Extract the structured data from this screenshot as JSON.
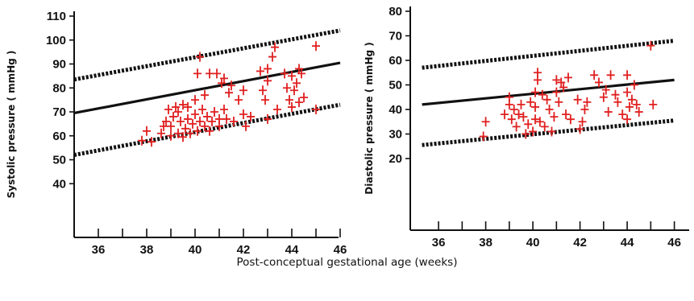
{
  "figure": {
    "shared_xlabel": "Post-conceptual gestational age (weeks)"
  },
  "colors": {
    "axis": "#111111",
    "line": "#111111",
    "points": "#e02020"
  },
  "chart_data": [
    {
      "type": "scatter",
      "ylabel": "Systolic pressure ( mmHg )",
      "xlim": [
        35,
        46
      ],
      "ylim": [
        35,
        110
      ],
      "x_ticks": [
        36,
        38,
        40,
        42,
        44,
        46
      ],
      "y_ticks": [
        40,
        50,
        60,
        70,
        80,
        90,
        100,
        110
      ],
      "x_minor_ticks": [
        37,
        39,
        41,
        43,
        45
      ],
      "grid": false,
      "lines": [
        {
          "role": "mean",
          "style": "solid",
          "points": [
            [
              35,
              69.5
            ],
            [
              46,
              90.5
            ]
          ]
        },
        {
          "role": "upper",
          "style": "dashed",
          "points": [
            [
              35,
              83.5
            ],
            [
              46,
              104
            ]
          ]
        },
        {
          "role": "lower",
          "style": "dashed",
          "points": [
            [
              35,
              52
            ],
            [
              46,
              73
            ]
          ]
        }
      ],
      "points": [
        [
          37.8,
          58
        ],
        [
          38.0,
          62
        ],
        [
          38.2,
          57.5
        ],
        [
          38.6,
          61
        ],
        [
          38.7,
          64
        ],
        [
          38.8,
          66
        ],
        [
          38.9,
          71
        ],
        [
          39.0,
          60
        ],
        [
          39.0,
          64
        ],
        [
          39.1,
          68
        ],
        [
          39.2,
          72
        ],
        [
          39.3,
          61
        ],
        [
          39.3,
          70
        ],
        [
          39.4,
          66
        ],
        [
          39.5,
          73
        ],
        [
          39.5,
          59.5
        ],
        [
          39.6,
          63
        ],
        [
          39.7,
          67
        ],
        [
          39.7,
          72
        ],
        [
          39.8,
          61
        ],
        [
          39.9,
          65
        ],
        [
          40.0,
          69
        ],
        [
          40.0,
          75
        ],
        [
          40.1,
          62
        ],
        [
          40.1,
          86
        ],
        [
          40.2,
          93
        ],
        [
          40.2,
          66
        ],
        [
          40.3,
          71
        ],
        [
          40.4,
          64
        ],
        [
          40.4,
          77
        ],
        [
          40.5,
          68
        ],
        [
          40.6,
          86
        ],
        [
          40.6,
          62
        ],
        [
          40.7,
          66
        ],
        [
          40.8,
          70
        ],
        [
          40.9,
          86
        ],
        [
          41.0,
          67
        ],
        [
          41.0,
          64
        ],
        [
          41.1,
          82
        ],
        [
          41.2,
          71
        ],
        [
          41.2,
          84
        ],
        [
          41.3,
          67
        ],
        [
          41.4,
          78
        ],
        [
          41.5,
          81
        ],
        [
          41.6,
          66
        ],
        [
          41.8,
          75
        ],
        [
          42.0,
          79
        ],
        [
          42.0,
          69
        ],
        [
          42.1,
          64
        ],
        [
          42.3,
          68
        ],
        [
          42.7,
          87
        ],
        [
          42.8,
          79
        ],
        [
          42.9,
          75
        ],
        [
          43.0,
          83
        ],
        [
          43.0,
          88
        ],
        [
          43.0,
          67
        ],
        [
          43.2,
          93
        ],
        [
          43.3,
          97
        ],
        [
          43.4,
          71
        ],
        [
          43.7,
          86
        ],
        [
          43.8,
          80
        ],
        [
          43.9,
          75
        ],
        [
          44.0,
          72
        ],
        [
          44.0,
          85
        ],
        [
          44.1,
          79
        ],
        [
          44.2,
          82
        ],
        [
          44.3,
          74
        ],
        [
          44.3,
          88
        ],
        [
          44.4,
          86
        ],
        [
          44.5,
          76
        ],
        [
          45.0,
          97.5
        ],
        [
          45.0,
          71
        ]
      ]
    },
    {
      "type": "scatter",
      "ylabel": "Diastolic pressure ( mmHg )",
      "xlim": [
        34.8,
        46
      ],
      "ylim": [
        10,
        80
      ],
      "x_ticks": [
        36,
        38,
        40,
        42,
        44,
        46
      ],
      "y_ticks": [
        20,
        30,
        40,
        50,
        60,
        70,
        80
      ],
      "x_minor_ticks": [
        37,
        39,
        41,
        43,
        45
      ],
      "grid": false,
      "lines": [
        {
          "role": "mean",
          "style": "solid",
          "points": [
            [
              35.3,
              42
            ],
            [
              46,
              52
            ]
          ]
        },
        {
          "role": "upper",
          "style": "dashed",
          "points": [
            [
              35.3,
              57
            ],
            [
              46,
              68
            ]
          ]
        },
        {
          "role": "lower",
          "style": "dashed",
          "points": [
            [
              35.3,
              25.5
            ],
            [
              46,
              35.5
            ]
          ]
        }
      ],
      "points": [
        [
          37.9,
          29
        ],
        [
          38.0,
          35
        ],
        [
          38.8,
          38
        ],
        [
          39.0,
          42
        ],
        [
          39.0,
          45
        ],
        [
          39.1,
          36
        ],
        [
          39.2,
          40
        ],
        [
          39.3,
          33
        ],
        [
          39.4,
          38
        ],
        [
          39.5,
          42
        ],
        [
          39.6,
          37
        ],
        [
          39.7,
          30
        ],
        [
          39.8,
          34
        ],
        [
          39.9,
          43
        ],
        [
          40.0,
          31
        ],
        [
          40.1,
          36
        ],
        [
          40.1,
          41
        ],
        [
          40.1,
          47
        ],
        [
          40.2,
          52
        ],
        [
          40.2,
          55
        ],
        [
          40.3,
          35
        ],
        [
          40.4,
          46
        ],
        [
          40.5,
          33
        ],
        [
          40.6,
          44
        ],
        [
          40.7,
          40
        ],
        [
          40.8,
          31
        ],
        [
          40.9,
          37
        ],
        [
          41.0,
          52
        ],
        [
          41.0,
          47
        ],
        [
          41.1,
          43
        ],
        [
          41.2,
          51
        ],
        [
          41.3,
          49
        ],
        [
          41.4,
          38
        ],
        [
          41.5,
          53
        ],
        [
          41.6,
          36
        ],
        [
          41.9,
          44
        ],
        [
          42.0,
          32
        ],
        [
          42.1,
          35
        ],
        [
          42.2,
          40
        ],
        [
          42.3,
          43
        ],
        [
          42.6,
          54
        ],
        [
          42.8,
          51
        ],
        [
          43.0,
          45
        ],
        [
          43.1,
          48
        ],
        [
          43.2,
          39
        ],
        [
          43.3,
          54
        ],
        [
          43.5,
          46
        ],
        [
          43.6,
          43
        ],
        [
          43.8,
          38
        ],
        [
          44.0,
          54
        ],
        [
          44.0,
          47
        ],
        [
          44.1,
          41
        ],
        [
          44.2,
          44
        ],
        [
          44.3,
          50
        ],
        [
          44.4,
          42
        ],
        [
          44.5,
          39
        ],
        [
          44.0,
          36
        ],
        [
          45.0,
          66
        ],
        [
          45.1,
          42
        ]
      ]
    }
  ]
}
